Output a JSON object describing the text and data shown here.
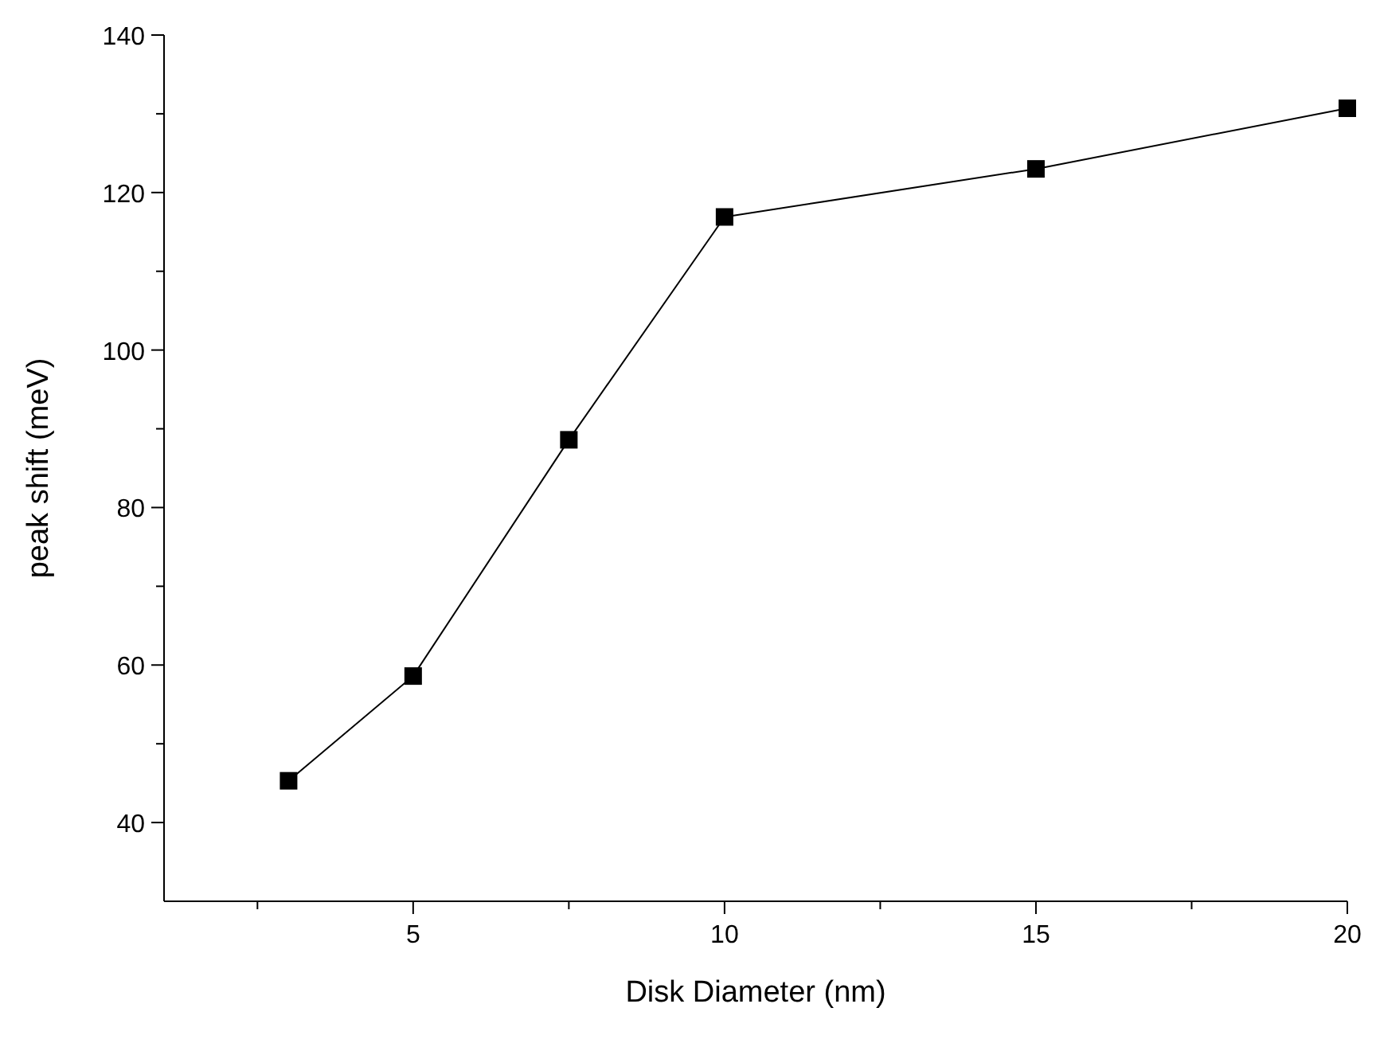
{
  "chart_data": {
    "type": "line",
    "xlabel": "Disk Diameter (nm)",
    "ylabel": "peak shift (meV)",
    "x": [
      3,
      5,
      7.5,
      10,
      15,
      20
    ],
    "series": [
      {
        "color": "#000000",
        "values": [
          45.3,
          58.6,
          88.6,
          116.9,
          123,
          130.7
        ]
      }
    ],
    "xlim": [
      1,
      20
    ],
    "xticks": [
      {
        "value": 2.5,
        "label": null
      },
      5,
      {
        "value": 7.5,
        "label": null
      },
      10,
      {
        "value": 12.5,
        "label": null
      },
      15,
      {
        "value": 17.5,
        "label": null
      },
      20
    ],
    "ylim": [
      30,
      140
    ],
    "yticks": [
      40,
      {
        "value": 50,
        "label": null
      },
      60,
      {
        "value": 70,
        "label": null
      },
      80,
      {
        "value": 90,
        "label": null
      },
      100,
      {
        "value": 110,
        "label": null
      },
      120,
      {
        "value": 130,
        "label": null
      },
      140
    ],
    "marker": "square",
    "line_style": "solid"
  }
}
